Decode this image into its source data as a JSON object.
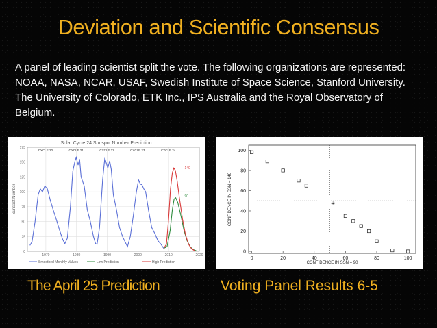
{
  "slide": {
    "title": "Deviation and Scientific Consensus",
    "body": "A panel of leading scientist split the vote. The following organizations are represented: NOAA, NASA, NCAR, USAF, Swedish Institute of Space Science, Stanford University. The University of Colorado, ETK Inc., IPS Australia and the Royal Observatory of Belgium.",
    "caption_left": "The April 25 Prediction",
    "caption_right": "Voting Panel Results 6-5",
    "colors": {
      "title": "#f0b020",
      "body_text": "#f4f4f4",
      "background": "#050505"
    }
  },
  "chart_data": [
    {
      "type": "line",
      "title": "Solar Cycle 24 Sunspot Number Prediction",
      "ylabel": "Sunspot Number",
      "xlabel": "",
      "xlim": [
        1964,
        2020
      ],
      "ylim": [
        0,
        175
      ],
      "yticks": [
        0,
        25,
        50,
        75,
        100,
        125,
        150,
        175
      ],
      "xticks": [
        1970,
        1980,
        1990,
        2000,
        2010,
        2020
      ],
      "cycle_labels": [
        "CYCLE 20",
        "CYCLE 21",
        "CYCLE 22",
        "CYCLE 23",
        "CYCLE 24"
      ],
      "annotations": [
        "140",
        "90"
      ],
      "legend": [
        "Smoothed Monthly Values",
        "Low Prediction",
        "High Prediction"
      ],
      "legend_position": "bottom",
      "series": [
        {
          "name": "Smoothed Monthly Values",
          "color": "#5a6fd6",
          "x": [
            1964.8,
            1965.5,
            1966.5,
            1967.5,
            1968.2,
            1968.9,
            1969.7,
            1970.5,
            1971.5,
            1972.5,
            1973.5,
            1974.5,
            1975.5,
            1976.2,
            1977.0,
            1978.0,
            1978.8,
            1979.5,
            1979.9,
            1980.5,
            1981.0,
            1981.5,
            1982.5,
            1983.5,
            1984.5,
            1985.5,
            1986.2,
            1986.7,
            1987.5,
            1988.5,
            1989.2,
            1989.6,
            1990.2,
            1990.8,
            1991.3,
            1992.0,
            1993.0,
            1994.0,
            1995.0,
            1996.0,
            1996.6,
            1997.5,
            1998.5,
            1999.5,
            2000.2,
            2000.8,
            2001.3,
            2001.9,
            2002.5,
            2003.5,
            2004.5,
            2005.5,
            2006.5,
            2007.5,
            2008.4
          ],
          "y": [
            10,
            16,
            50,
            95,
            105,
            100,
            110,
            105,
            85,
            68,
            52,
            35,
            20,
            13,
            22,
            75,
            135,
            152,
            158,
            145,
            155,
            125,
            110,
            70,
            50,
            25,
            13,
            12,
            40,
            120,
            157,
            150,
            140,
            152,
            138,
            95,
            70,
            40,
            25,
            14,
            8,
            25,
            60,
            100,
            120,
            113,
            112,
            105,
            100,
            68,
            40,
            30,
            18,
            12,
            5
          ]
        },
        {
          "name": "Low Prediction",
          "color": "#2e8b3e",
          "x": [
            2008.4,
            2009.5,
            2010.5,
            2011.2,
            2011.8,
            2012.3,
            2013.0,
            2014.0,
            2015.0,
            2016.0,
            2017.0,
            2018.0,
            2019.0
          ],
          "y": [
            5,
            8,
            35,
            70,
            88,
            90,
            82,
            60,
            35,
            18,
            8,
            3,
            1
          ]
        },
        {
          "name": "High Prediction",
          "color": "#d93a3a",
          "x": [
            2008.4,
            2009.3,
            2010.0,
            2010.6,
            2011.2,
            2011.7,
            2012.2,
            2012.8,
            2013.5,
            2014.5,
            2015.5,
            2016.5,
            2017.5,
            2018.5
          ],
          "y": [
            5,
            12,
            55,
            105,
            132,
            140,
            136,
            118,
            90,
            55,
            28,
            12,
            4,
            1
          ]
        }
      ]
    },
    {
      "type": "scatter",
      "title": "",
      "xlabel": "CONFIDENCE IN SSN = 90",
      "ylabel": "CONFIDENCE IN SSN = 140",
      "xlim": [
        -2,
        105
      ],
      "ylim": [
        -2,
        105
      ],
      "xticks": [
        0,
        20,
        40,
        60,
        80,
        100
      ],
      "yticks": [
        0,
        20,
        40,
        60,
        80,
        100
      ],
      "reference_lines": {
        "x": 50,
        "y": 50
      },
      "points": {
        "x": [
          0,
          10,
          20,
          30,
          35,
          60,
          65,
          70,
          75,
          80,
          90,
          100
        ],
        "y": [
          98,
          89,
          80,
          70,
          65,
          35,
          30,
          25,
          20,
          10,
          1,
          0
        ]
      },
      "center_point": {
        "x": 52,
        "y": 47
      }
    }
  ]
}
